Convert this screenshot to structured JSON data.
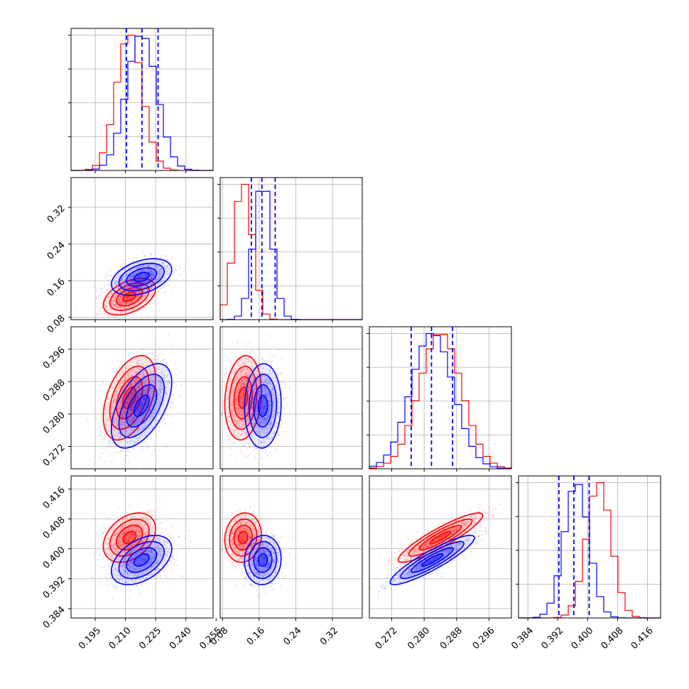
{
  "chart_data": {
    "type": "corner",
    "grid": true,
    "colors": {
      "red": "#ff0000",
      "blue": "#0000ff"
    },
    "series": [
      {
        "color": "#ff0000",
        "mean": [
          0.212,
          0.125,
          0.284,
          0.403
        ],
        "sd": [
          0.0065,
          0.02,
          0.0052,
          0.0033
        ]
      },
      {
        "color": "#0000ff",
        "mean": [
          0.218,
          0.168,
          0.282,
          0.397
        ],
        "sd": [
          0.0075,
          0.02,
          0.0052,
          0.0033
        ]
      }
    ],
    "correlations": [
      {
        "i": 1,
        "j": 0,
        "red": 0.45,
        "blue": 0.4
      },
      {
        "i": 2,
        "j": 0,
        "red": 0.45,
        "blue": 0.55
      },
      {
        "i": 2,
        "j": 1,
        "red": 0.15,
        "blue": 0.05
      },
      {
        "i": 3,
        "j": 0,
        "red": 0.35,
        "blue": 0.45
      },
      {
        "i": 3,
        "j": 1,
        "red": 0.1,
        "blue": 0.05
      },
      {
        "i": 3,
        "j": 2,
        "red": 0.9,
        "blue": 0.9
      }
    ],
    "quantile_lines": [
      [
        0.2105,
        0.2182,
        0.2262
      ],
      [
        0.143,
        0.166,
        0.195
      ],
      [
        0.2768,
        0.2818,
        0.287
      ],
      [
        0.3923,
        0.3963,
        0.4004
      ]
    ],
    "params": [
      {
        "range": [
          0.183,
          0.2535
        ],
        "ticks": [
          0.195,
          0.21,
          0.225,
          0.24,
          0.255
        ],
        "tick_labels": [
          "0.195",
          "0.210",
          "0.225",
          "0.240",
          "0.255"
        ]
      },
      {
        "range": [
          0.075,
          0.385
        ],
        "ticks": [
          0.08,
          0.16,
          0.24,
          0.32
        ],
        "tick_labels": [
          "0.08",
          "0.16",
          "0.24",
          "0.32"
        ]
      },
      {
        "range": [
          0.2665,
          0.3015
        ],
        "ticks": [
          0.272,
          0.28,
          0.288,
          0.296
        ],
        "tick_labels": [
          "0.272",
          "0.280",
          "0.288",
          "0.296"
        ]
      },
      {
        "range": [
          0.3815,
          0.4195
        ],
        "ticks": [
          0.384,
          0.392,
          0.4,
          0.408,
          0.416
        ],
        "tick_labels": [
          "0.384",
          "0.392",
          "0.400",
          "0.408",
          "0.416"
        ]
      }
    ]
  }
}
